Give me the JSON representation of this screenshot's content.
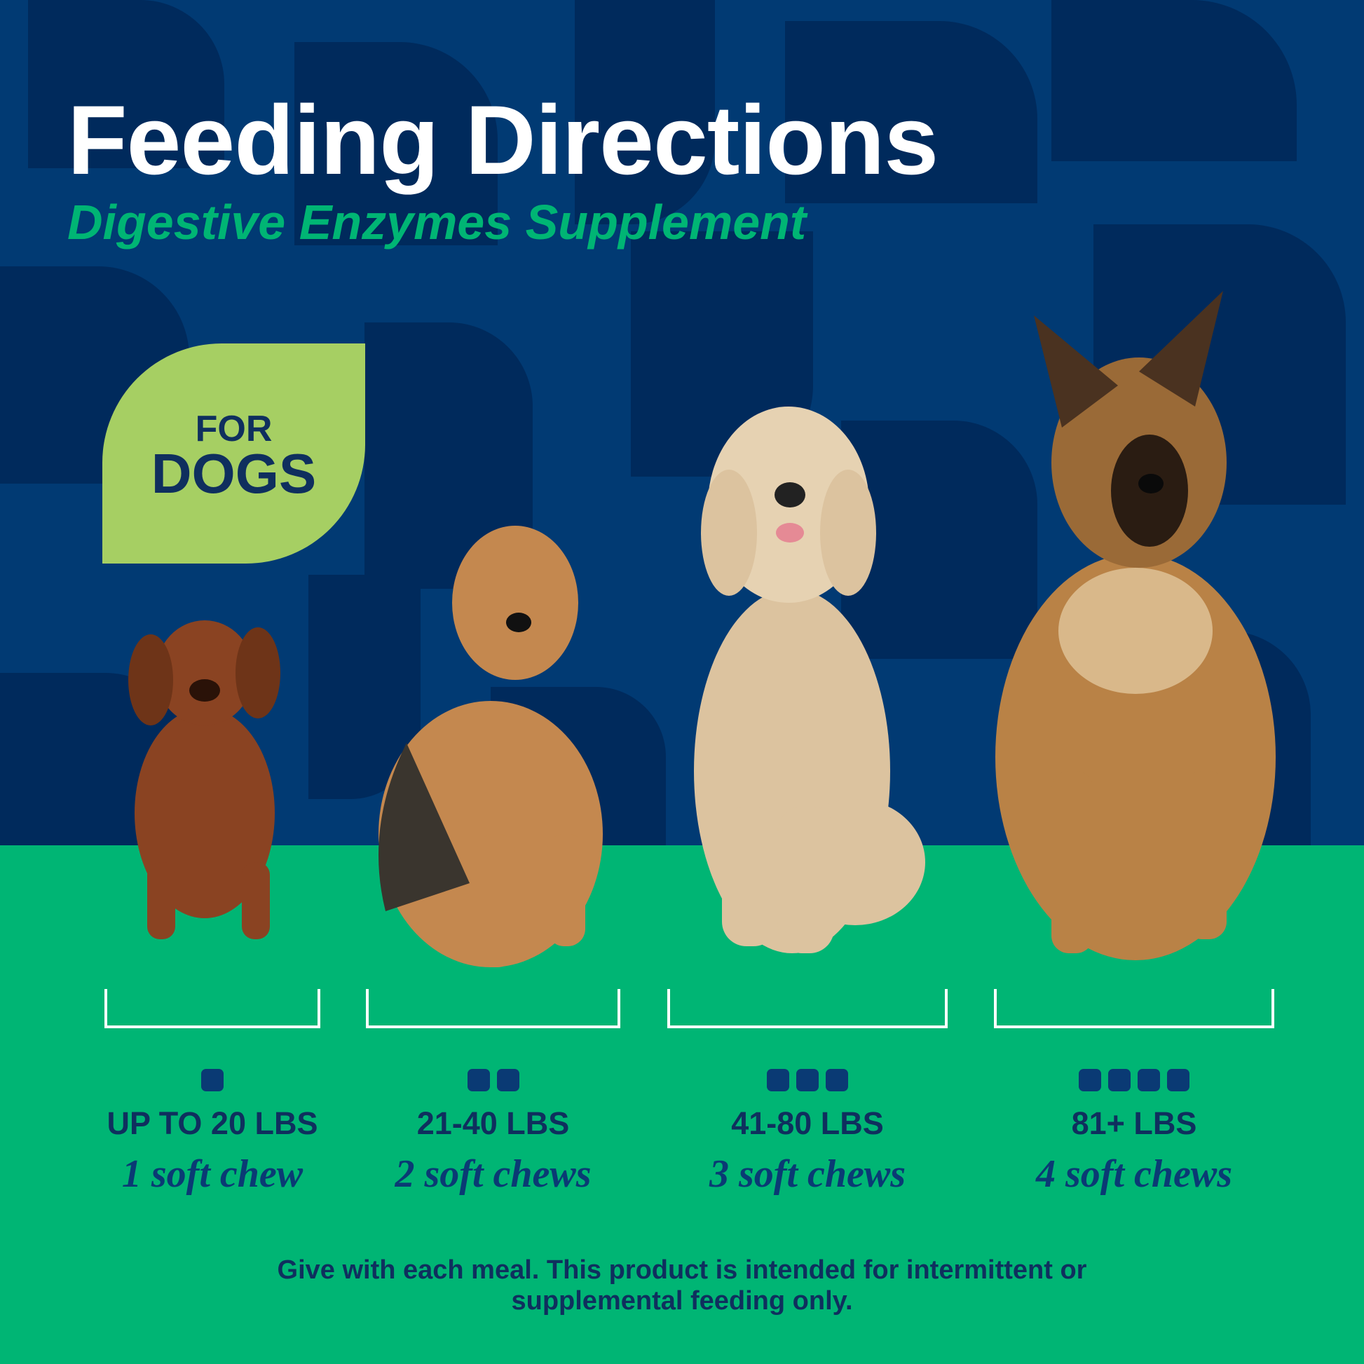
{
  "header": {
    "title": "Feeding Directions",
    "subtitle": "Digestive Enzymes Supplement"
  },
  "badge": {
    "line1": "FOR",
    "line2": "DOGS"
  },
  "colors": {
    "background_blue": "#013a73",
    "pattern_blue": "#002a5c",
    "ground_green": "#00b574",
    "badge_green": "#a6cf63",
    "text_navy": "#0f2f5e"
  },
  "dogs": [
    {
      "breed": "dachshund"
    },
    {
      "breed": "airedale-terrier"
    },
    {
      "breed": "goldendoodle"
    },
    {
      "breed": "german-shepherd"
    }
  ],
  "dosage": [
    {
      "weight": "UP TO 20 LBS",
      "dose": "1 soft chew",
      "chews": 1
    },
    {
      "weight": "21-40 LBS",
      "dose": "2 soft chews",
      "chews": 2
    },
    {
      "weight": "41-80 LBS",
      "dose": "3 soft chews",
      "chews": 3
    },
    {
      "weight": "81+ LBS",
      "dose": "4 soft chews",
      "chews": 4
    }
  ],
  "footer": {
    "line1": "Give with each meal. This product is intended for intermittent or",
    "line2": "supplemental feeding only."
  }
}
